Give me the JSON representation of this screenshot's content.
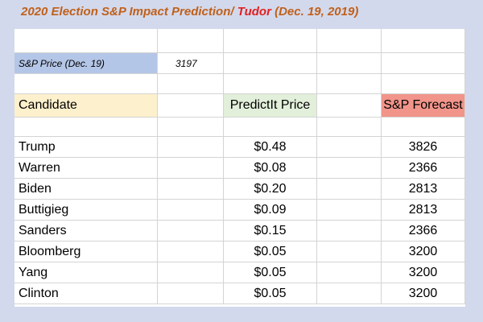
{
  "title": {
    "prefix": "2020 Election S&P Impact Prediction/",
    "author": "Tudor",
    "date": "(Dec. 19, 2019)"
  },
  "sp_price": {
    "label": "S&P Price  (Dec. 19)",
    "value": "3197"
  },
  "headers": {
    "candidate": "Candidate",
    "price": "PredictIt Price",
    "forecast": "S&P Forecast"
  },
  "rows": [
    {
      "candidate": "Trump",
      "price": "$0.48",
      "forecast": "3826"
    },
    {
      "candidate": "Warren",
      "price": "$0.08",
      "forecast": "2366"
    },
    {
      "candidate": "Biden",
      "price": "$0.20",
      "forecast": "2813"
    },
    {
      "candidate": "Buttigieg",
      "price": "$0.09",
      "forecast": "2813"
    },
    {
      "candidate": "Sanders",
      "price": "$0.15",
      "forecast": "2366"
    },
    {
      "candidate": "Bloomberg",
      "price": "$0.05",
      "forecast": "3200"
    },
    {
      "candidate": "Yang",
      "price": "$0.05",
      "forecast": "3200"
    },
    {
      "candidate": "Clinton",
      "price": "$0.05",
      "forecast": "3200"
    }
  ],
  "colors": {
    "background": "#d3d9ec",
    "title": "#c0601a",
    "title_name": "#e02020",
    "sp_label_fill": "#b4c6e7",
    "candidate_fill": "#fdf0cc",
    "price_fill": "#e2efda",
    "forecast_fill": "#f1948a"
  }
}
